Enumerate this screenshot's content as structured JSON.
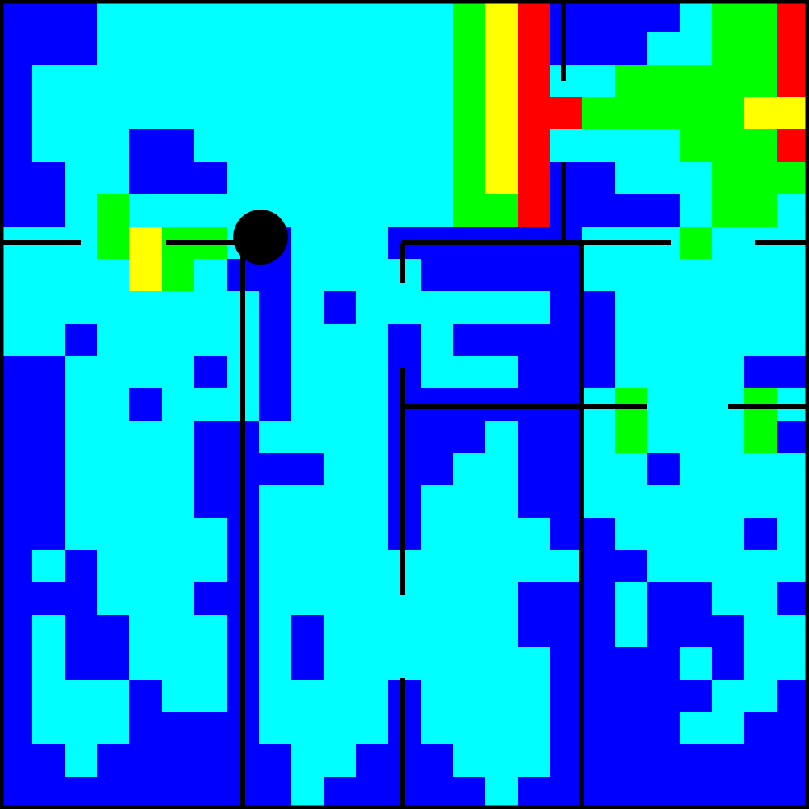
{
  "chart_data": {
    "type": "heatmap",
    "tick_labels": false,
    "zlim": [
      0,
      4
    ],
    "colors": [
      "#0000ff",
      "#00ffff",
      "#00ff00",
      "#ffff00",
      "#ff0000"
    ],
    "cells": [
      [
        0,
        0,
        0,
        1,
        1,
        1,
        1,
        1,
        1,
        1,
        1,
        1,
        1,
        1,
        2,
        3,
        4,
        0,
        0,
        0,
        0,
        1,
        2,
        2,
        4
      ],
      [
        0,
        0,
        0,
        1,
        1,
        1,
        1,
        1,
        1,
        1,
        1,
        1,
        1,
        1,
        2,
        3,
        4,
        0,
        0,
        0,
        1,
        1,
        2,
        2,
        4
      ],
      [
        0,
        1,
        1,
        1,
        1,
        1,
        1,
        1,
        1,
        1,
        1,
        1,
        1,
        1,
        2,
        3,
        4,
        1,
        1,
        2,
        2,
        2,
        2,
        2,
        4
      ],
      [
        0,
        1,
        1,
        1,
        1,
        1,
        1,
        1,
        1,
        1,
        1,
        1,
        1,
        1,
        2,
        3,
        4,
        4,
        2,
        2,
        2,
        2,
        2,
        3,
        3
      ],
      [
        0,
        1,
        1,
        1,
        0,
        0,
        1,
        1,
        1,
        1,
        1,
        1,
        1,
        1,
        2,
        3,
        4,
        1,
        1,
        1,
        1,
        2,
        2,
        2,
        4
      ],
      [
        0,
        0,
        1,
        1,
        0,
        0,
        0,
        1,
        1,
        1,
        1,
        1,
        1,
        1,
        2,
        3,
        4,
        0,
        0,
        1,
        1,
        1,
        2,
        2,
        2
      ],
      [
        0,
        0,
        1,
        2,
        1,
        1,
        1,
        1,
        1,
        1,
        1,
        1,
        1,
        1,
        2,
        2,
        4,
        0,
        0,
        0,
        0,
        1,
        2,
        2,
        1
      ],
      [
        1,
        1,
        1,
        2,
        3,
        2,
        2,
        1,
        0,
        1,
        1,
        1,
        0,
        0,
        0,
        0,
        0,
        0,
        1,
        1,
        1,
        2,
        1,
        1,
        1
      ],
      [
        1,
        1,
        1,
        1,
        3,
        2,
        1,
        0,
        0,
        1,
        1,
        1,
        1,
        0,
        0,
        0,
        0,
        0,
        1,
        1,
        1,
        1,
        1,
        1,
        1
      ],
      [
        1,
        1,
        1,
        1,
        1,
        1,
        1,
        1,
        0,
        1,
        0,
        1,
        1,
        1,
        1,
        1,
        1,
        0,
        0,
        1,
        1,
        1,
        1,
        1,
        1
      ],
      [
        1,
        1,
        0,
        1,
        1,
        1,
        1,
        1,
        0,
        1,
        1,
        1,
        0,
        1,
        0,
        0,
        0,
        0,
        0,
        1,
        1,
        1,
        1,
        1,
        1
      ],
      [
        0,
        0,
        1,
        1,
        1,
        1,
        0,
        1,
        0,
        1,
        1,
        1,
        0,
        1,
        1,
        1,
        0,
        0,
        0,
        1,
        1,
        1,
        1,
        0,
        0
      ],
      [
        0,
        0,
        1,
        1,
        0,
        1,
        1,
        1,
        0,
        1,
        1,
        1,
        0,
        0,
        0,
        0,
        0,
        0,
        1,
        2,
        1,
        1,
        1,
        2,
        1
      ],
      [
        0,
        0,
        1,
        1,
        1,
        1,
        0,
        0,
        1,
        1,
        1,
        1,
        0,
        0,
        0,
        1,
        0,
        0,
        1,
        2,
        1,
        1,
        1,
        2,
        0
      ],
      [
        0,
        0,
        1,
        1,
        1,
        1,
        0,
        0,
        0,
        0,
        1,
        1,
        0,
        0,
        1,
        1,
        0,
        0,
        1,
        1,
        0,
        1,
        1,
        1,
        1
      ],
      [
        0,
        0,
        1,
        1,
        1,
        1,
        0,
        0,
        1,
        1,
        1,
        1,
        0,
        1,
        1,
        1,
        0,
        0,
        1,
        1,
        1,
        1,
        1,
        1,
        1
      ],
      [
        0,
        0,
        1,
        1,
        1,
        1,
        1,
        0,
        1,
        1,
        1,
        1,
        0,
        1,
        1,
        1,
        1,
        0,
        0,
        1,
        1,
        1,
        1,
        0,
        1
      ],
      [
        0,
        1,
        0,
        1,
        1,
        1,
        1,
        0,
        1,
        1,
        1,
        1,
        1,
        1,
        1,
        1,
        1,
        1,
        0,
        0,
        1,
        1,
        1,
        1,
        1
      ],
      [
        0,
        0,
        0,
        1,
        1,
        1,
        0,
        0,
        1,
        1,
        1,
        1,
        1,
        1,
        1,
        1,
        0,
        0,
        0,
        1,
        0,
        0,
        1,
        1,
        0
      ],
      [
        0,
        1,
        0,
        0,
        1,
        1,
        1,
        0,
        1,
        0,
        1,
        1,
        1,
        1,
        1,
        1,
        0,
        0,
        0,
        1,
        0,
        0,
        0,
        1,
        1
      ],
      [
        0,
        1,
        0,
        0,
        1,
        1,
        1,
        0,
        1,
        0,
        1,
        1,
        1,
        1,
        1,
        1,
        1,
        0,
        0,
        0,
        0,
        1,
        0,
        1,
        1
      ],
      [
        0,
        1,
        1,
        1,
        0,
        1,
        1,
        0,
        1,
        1,
        1,
        1,
        0,
        1,
        1,
        1,
        1,
        0,
        0,
        0,
        0,
        0,
        1,
        1,
        0
      ],
      [
        0,
        1,
        1,
        1,
        0,
        0,
        0,
        0,
        1,
        1,
        1,
        1,
        0,
        1,
        1,
        1,
        1,
        0,
        0,
        0,
        0,
        1,
        1,
        0,
        0
      ],
      [
        0,
        0,
        1,
        0,
        0,
        0,
        0,
        0,
        0,
        1,
        1,
        0,
        0,
        0,
        1,
        1,
        1,
        0,
        0,
        0,
        0,
        0,
        0,
        0,
        0
      ],
      [
        0,
        0,
        0,
        0,
        0,
        0,
        0,
        0,
        0,
        1,
        0,
        0,
        0,
        0,
        0,
        1,
        0,
        0,
        0,
        0,
        0,
        0,
        0,
        0,
        0
      ]
    ]
  }
}
